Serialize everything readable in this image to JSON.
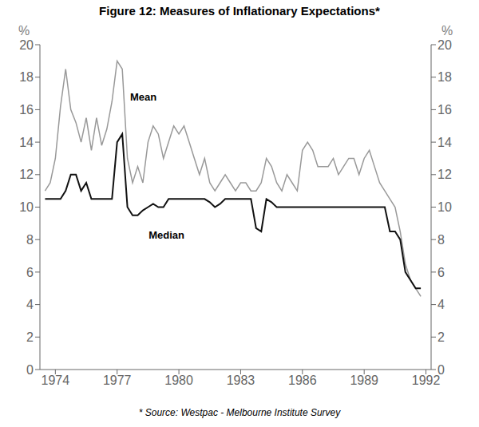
{
  "chart_data": {
    "type": "line",
    "title": "Figure 12: Measures of Inflationary Expectations*",
    "footnote": "* Source: Westpac - Melbourne Institute Survey",
    "ylabel": "%",
    "y2label": "%",
    "xlim": [
      1973.25,
      1992.25
    ],
    "xticks": [
      1974,
      1977,
      1980,
      1983,
      1986,
      1989,
      1992
    ],
    "ylim": [
      0,
      20
    ],
    "yticks": [
      0,
      2,
      4,
      6,
      8,
      10,
      12,
      14,
      16,
      18,
      20
    ],
    "y2lim": [
      0,
      20
    ],
    "y2ticks": [
      0,
      2,
      4,
      6,
      8,
      10,
      12,
      14,
      16,
      18,
      20
    ],
    "grid": false,
    "x": [
      1973.5,
      1973.75,
      1974.0,
      1974.25,
      1974.5,
      1974.75,
      1975.0,
      1975.25,
      1975.5,
      1975.75,
      1976.0,
      1976.25,
      1976.5,
      1976.75,
      1977.0,
      1977.25,
      1977.5,
      1977.75,
      1978.0,
      1978.25,
      1978.5,
      1978.75,
      1979.0,
      1979.25,
      1979.5,
      1979.75,
      1980.0,
      1980.25,
      1980.5,
      1980.75,
      1981.0,
      1981.25,
      1981.5,
      1981.75,
      1982.0,
      1982.25,
      1982.5,
      1982.75,
      1983.0,
      1983.25,
      1983.5,
      1983.75,
      1984.0,
      1984.25,
      1984.5,
      1984.75,
      1985.0,
      1985.25,
      1985.5,
      1985.75,
      1986.0,
      1986.25,
      1986.5,
      1986.75,
      1987.0,
      1987.25,
      1987.5,
      1987.75,
      1988.0,
      1988.25,
      1988.5,
      1988.75,
      1989.0,
      1989.25,
      1989.5,
      1989.75,
      1990.0,
      1990.25,
      1990.5,
      1990.75,
      1991.0,
      1991.25,
      1991.5,
      1991.75
    ],
    "series": [
      {
        "name": "Mean",
        "color": "#999999",
        "values": [
          11.0,
          11.5,
          13.0,
          16.2,
          18.5,
          16.0,
          15.2,
          14.0,
          15.5,
          13.5,
          15.5,
          13.8,
          14.8,
          16.5,
          19.0,
          18.5,
          13.0,
          11.5,
          12.5,
          11.5,
          14.0,
          15.0,
          14.5,
          13.0,
          14.0,
          15.0,
          14.5,
          15.0,
          14.0,
          13.0,
          12.0,
          13.0,
          11.5,
          11.0,
          11.5,
          12.0,
          11.5,
          11.0,
          11.5,
          11.5,
          11.0,
          11.0,
          11.5,
          13.0,
          12.5,
          11.5,
          11.0,
          12.0,
          11.5,
          11.0,
          13.5,
          14.0,
          13.5,
          12.5,
          12.5,
          12.5,
          13.0,
          12.0,
          12.5,
          13.0,
          13.0,
          12.0,
          13.0,
          13.5,
          12.5,
          11.5,
          11.0,
          10.5,
          10.0,
          8.5,
          6.5,
          5.5,
          5.0,
          4.5
        ]
      },
      {
        "name": "Median",
        "color": "#111111",
        "values": [
          10.5,
          10.5,
          10.5,
          10.5,
          11.0,
          12.0,
          12.0,
          11.0,
          11.5,
          10.5,
          10.5,
          10.5,
          10.5,
          10.5,
          14.0,
          14.5,
          10.0,
          9.5,
          9.5,
          9.8,
          10.0,
          10.2,
          10.0,
          10.0,
          10.5,
          10.5,
          10.5,
          10.5,
          10.5,
          10.5,
          10.5,
          10.5,
          10.3,
          10.0,
          10.2,
          10.5,
          10.5,
          10.5,
          10.5,
          10.5,
          10.5,
          8.7,
          8.5,
          10.5,
          10.3,
          10.0,
          10.0,
          10.0,
          10.0,
          10.0,
          10.0,
          10.0,
          10.0,
          10.0,
          10.0,
          10.0,
          10.0,
          10.0,
          10.0,
          10.0,
          10.0,
          10.0,
          10.0,
          10.0,
          10.0,
          10.0,
          10.0,
          8.5,
          8.5,
          8.0,
          6.0,
          5.5,
          5.0,
          5.0
        ]
      }
    ],
    "annotations": [
      {
        "text": "Mean",
        "x": 1977.4,
        "y": 16.8
      },
      {
        "text": "Median",
        "x": 1978.3,
        "y": 8.3
      }
    ]
  }
}
